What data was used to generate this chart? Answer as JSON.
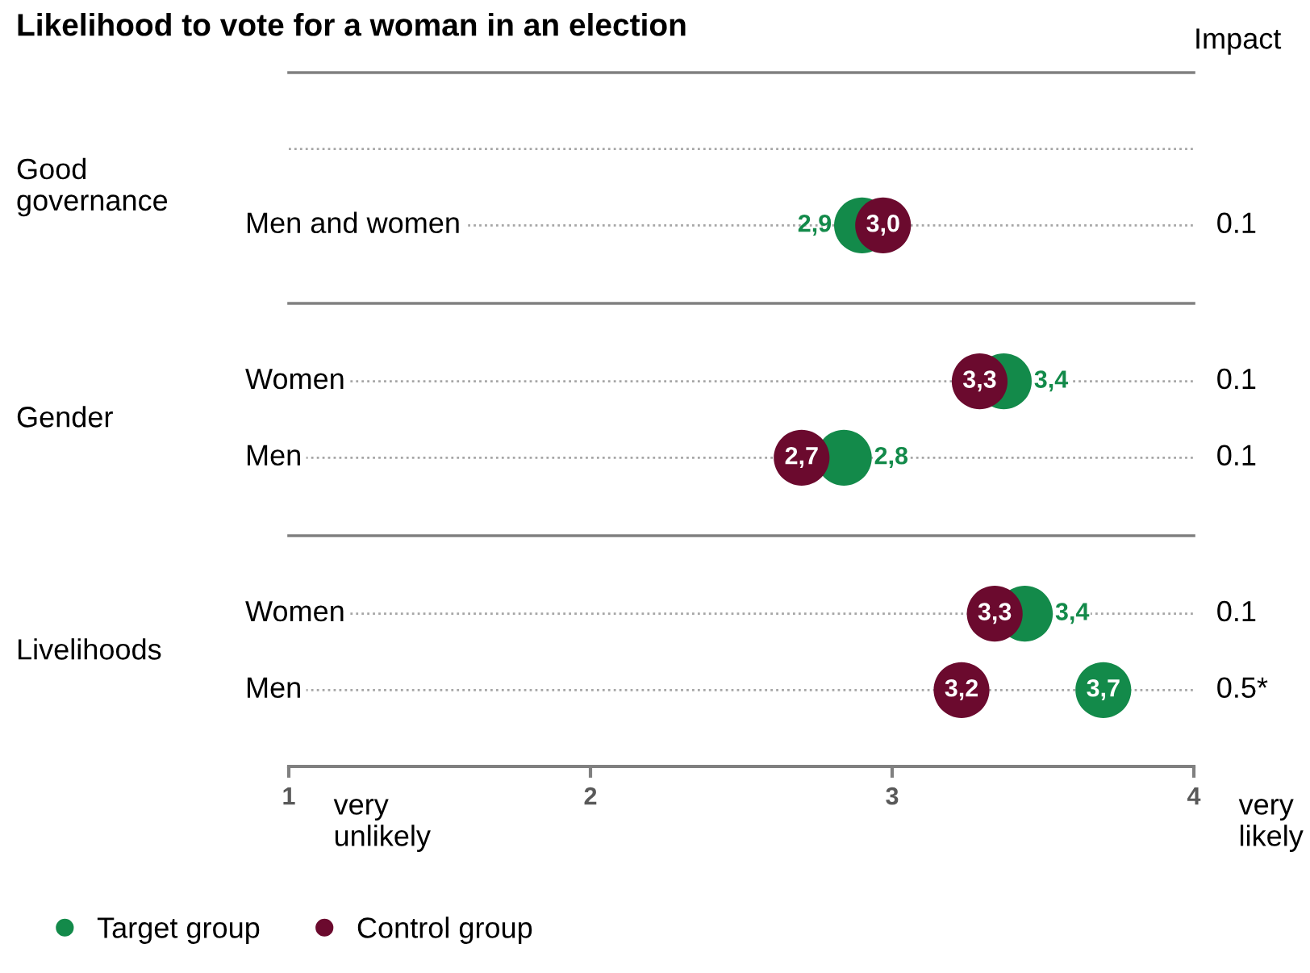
{
  "chart_data": {
    "type": "scatter",
    "orientation": "horizontal",
    "title": "Likelihood to vote for a woman in an election",
    "categories": [
      null,
      "Men and women",
      "Women",
      "Men",
      "Women",
      "Men"
    ],
    "series": [
      {
        "name": "Target group",
        "color": "#138a4a",
        "values": [
          null,
          2.9,
          3.37,
          2.84,
          3.44,
          3.7
        ],
        "value_labels": [
          null,
          "2,9",
          "3,4",
          "2,8",
          "3,4",
          "3,7"
        ]
      },
      {
        "name": "Control group",
        "color": "#6b0a2e",
        "values": [
          null,
          2.97,
          3.29,
          2.7,
          3.34,
          3.23
        ],
        "value_labels": [
          null,
          "3,0",
          "3,3",
          "2,7",
          "3,3",
          "3,2"
        ]
      }
    ],
    "xlim": [
      1,
      4
    ],
    "xticks": [
      1,
      2,
      3,
      4
    ],
    "grid": "y",
    "marker": "circle",
    "legend": "bottom left",
    "annotations": [
      "Impact",
      "0.1",
      "0.1",
      "0.1",
      "0.1",
      "0.5*",
      "Good\ngovernance",
      "Gender",
      "Livelihoods",
      "very\nunlikely",
      "very\nlikely"
    ]
  }
}
